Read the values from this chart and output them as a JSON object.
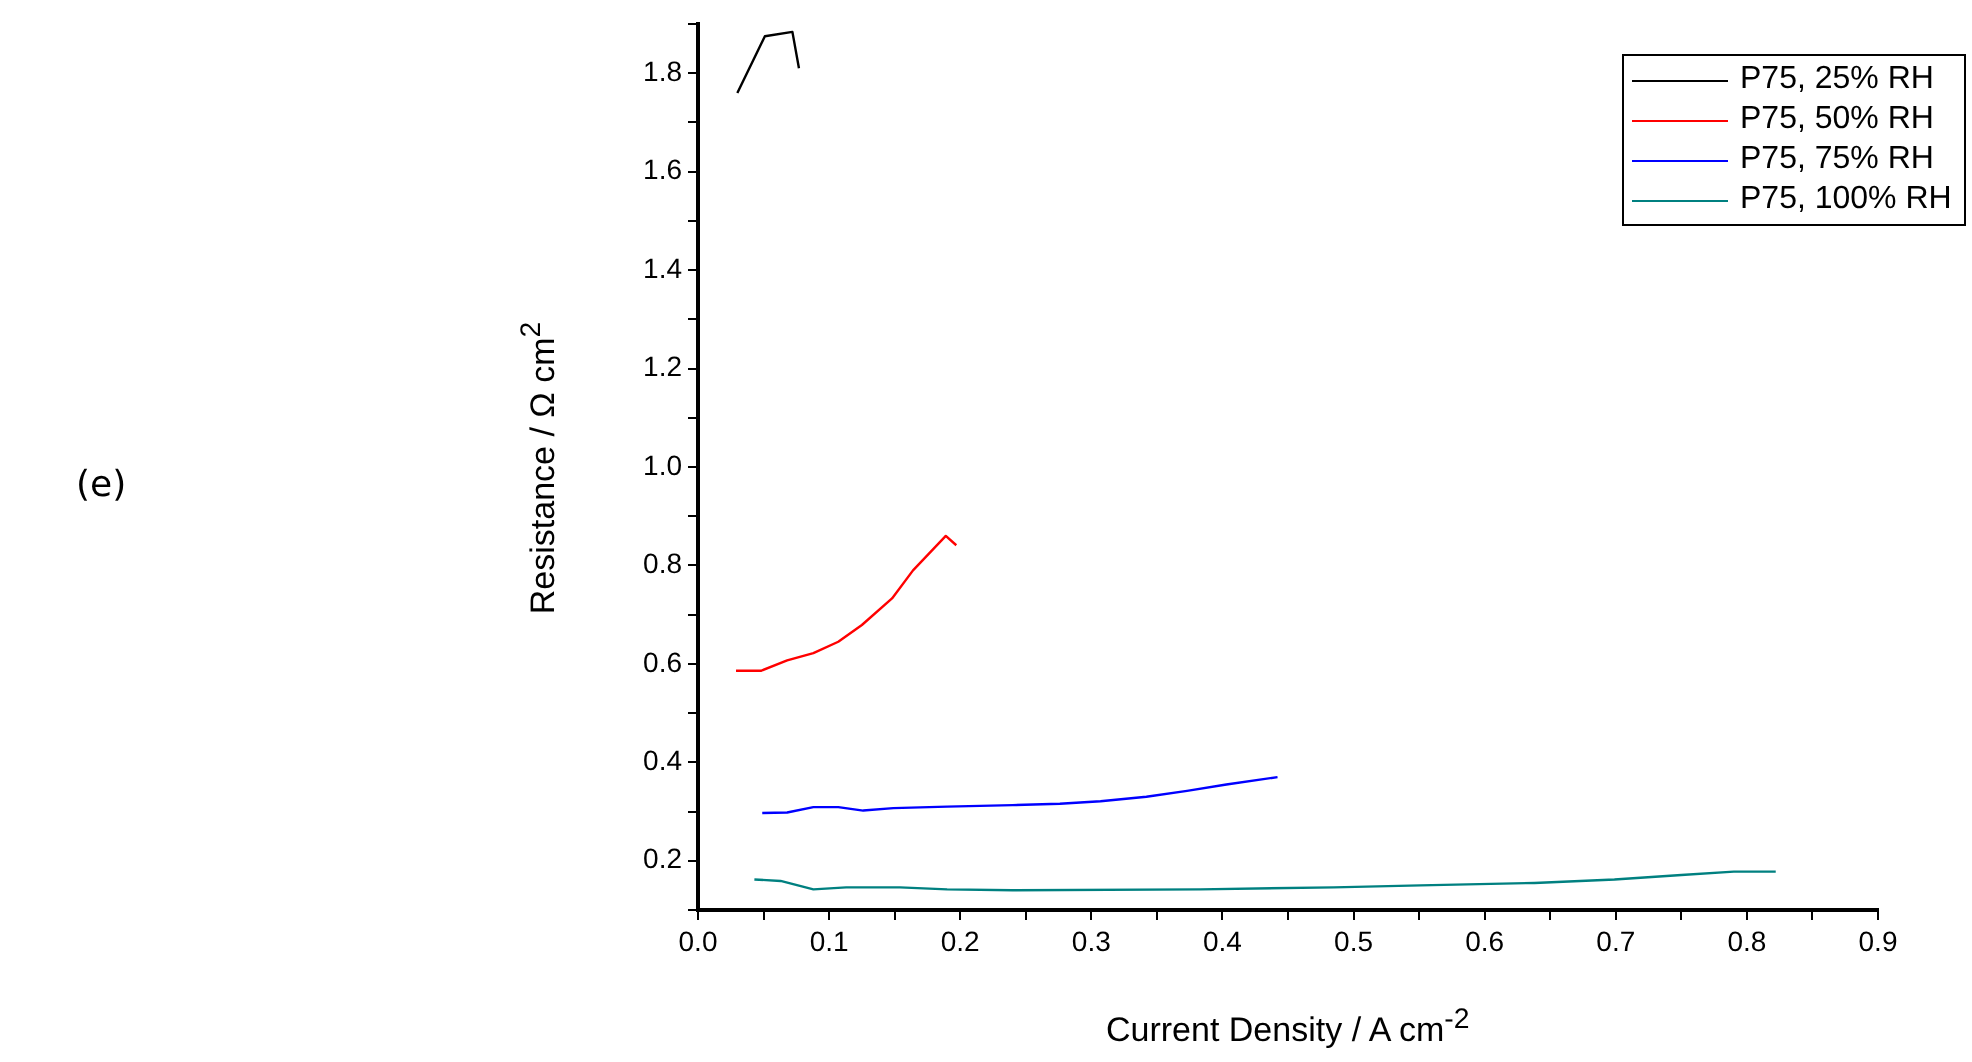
{
  "chart_data": {
    "type": "line",
    "xlabel": "Current Density / A cm$^{-2}$",
    "ylabel": "Resistance / Ω cm$^{2}$",
    "annotations": [
      "(e)"
    ],
    "xlim": [
      0,
      0.9
    ],
    "ylim": [
      0.1,
      1.9
    ],
    "xticks": [
      {
        "value": 0,
        "label": "0.0"
      },
      {
        "value": 0.05,
        "label": null
      },
      {
        "value": 0.1,
        "label": "0.1"
      },
      {
        "value": 0.15,
        "label": null
      },
      {
        "value": 0.2,
        "label": "0.2"
      },
      {
        "value": 0.25,
        "label": null
      },
      {
        "value": 0.3,
        "label": "0.3"
      },
      {
        "value": 0.35,
        "label": null
      },
      {
        "value": 0.4,
        "label": "0.4"
      },
      {
        "value": 0.45,
        "label": null
      },
      {
        "value": 0.5,
        "label": "0.5"
      },
      {
        "value": 0.55,
        "label": null
      },
      {
        "value": 0.6,
        "label": "0.6"
      },
      {
        "value": 0.65,
        "label": null
      },
      {
        "value": 0.7,
        "label": "0.7"
      },
      {
        "value": 0.75,
        "label": null
      },
      {
        "value": 0.8,
        "label": "0.8"
      },
      {
        "value": 0.85,
        "label": null
      },
      {
        "value": 0.9,
        "label": "0.9"
      }
    ],
    "yticks": [
      {
        "value": 0.1,
        "label": null
      },
      {
        "value": 0.2,
        "label": "0.2"
      },
      {
        "value": 0.3,
        "label": null
      },
      {
        "value": 0.4,
        "label": "0.4"
      },
      {
        "value": 0.5,
        "label": null
      },
      {
        "value": 0.6,
        "label": "0.6"
      },
      {
        "value": 0.7,
        "label": null
      },
      {
        "value": 0.8,
        "label": "0.8"
      },
      {
        "value": 0.9,
        "label": null
      },
      {
        "value": 1.0,
        "label": "1.0"
      },
      {
        "value": 1.1,
        "label": null
      },
      {
        "value": 1.2,
        "label": "1.2"
      },
      {
        "value": 1.3,
        "label": null
      },
      {
        "value": 1.4,
        "label": "1.4"
      },
      {
        "value": 1.5,
        "label": null
      },
      {
        "value": 1.6,
        "label": "1.6"
      },
      {
        "value": 1.7,
        "label": null
      },
      {
        "value": 1.8,
        "label": "1.8"
      },
      {
        "value": 1.9,
        "label": null
      }
    ],
    "grid": false,
    "legend": "top right",
    "marker": "none",
    "line_style": "solid",
    "series": [
      {
        "name": "P75, 25% RH",
        "color": "#000000",
        "x": [
          0.03,
          0.051,
          0.072,
          0.077
        ],
        "values": [
          1.76,
          1.875,
          1.884,
          1.81
        ]
      },
      {
        "name": "P75, 50% RH",
        "color": "#ff0000",
        "x": [
          0.029,
          0.048,
          0.068,
          0.088,
          0.107,
          0.125,
          0.148,
          0.164,
          0.189,
          0.197
        ],
        "values": [
          0.586,
          0.586,
          0.607,
          0.622,
          0.645,
          0.679,
          0.733,
          0.79,
          0.86,
          0.841
        ]
      },
      {
        "name": "P75, 75% RH",
        "color": "#0000ff",
        "x": [
          0.049,
          0.068,
          0.088,
          0.107,
          0.126,
          0.149,
          0.19,
          0.24,
          0.276,
          0.307,
          0.342,
          0.373,
          0.403,
          0.442
        ],
        "values": [
          0.297,
          0.298,
          0.309,
          0.309,
          0.302,
          0.307,
          0.31,
          0.313,
          0.316,
          0.321,
          0.33,
          0.342,
          0.355,
          0.37
        ]
      },
      {
        "name": "P75, 100% RH",
        "color": "#008080",
        "x": [
          0.043,
          0.063,
          0.088,
          0.113,
          0.154,
          0.19,
          0.24,
          0.383,
          0.485,
          0.551,
          0.638,
          0.699,
          0.75,
          0.79,
          0.822
        ],
        "values": [
          0.162,
          0.159,
          0.142,
          0.146,
          0.146,
          0.142,
          0.14,
          0.142,
          0.146,
          0.15,
          0.155,
          0.162,
          0.171,
          0.178,
          0.178
        ]
      }
    ]
  }
}
